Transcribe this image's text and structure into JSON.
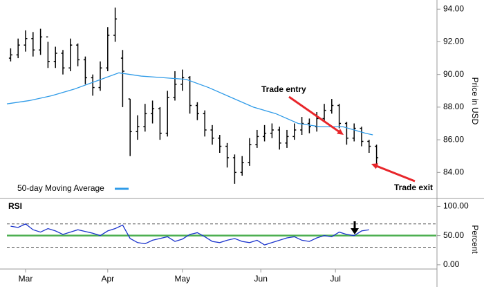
{
  "chart_data": [
    {
      "type": "ohlc",
      "y_label": "Price in USD",
      "xlim": [
        0,
        115
      ],
      "ylim": [
        82.7,
        94.35
      ],
      "yticks": [
        {
          "value": 84,
          "label": "84.00"
        },
        {
          "value": 86,
          "label": "86.00"
        },
        {
          "value": 88,
          "label": "88.00"
        },
        {
          "value": 90,
          "label": "90.00"
        },
        {
          "value": 92,
          "label": "92.00"
        },
        {
          "value": 94,
          "label": "94.00"
        }
      ],
      "ohlc": {
        "color": "#000000",
        "x": [
          1,
          3,
          5,
          7,
          9,
          11,
          13,
          15,
          17,
          19,
          21,
          23,
          25,
          27,
          29,
          31,
          33,
          35,
          37,
          39,
          41,
          43,
          45,
          47,
          49,
          51,
          53,
          55,
          57,
          59,
          61,
          63,
          65,
          67,
          69,
          71,
          73,
          75,
          77,
          79,
          81,
          83,
          85,
          87,
          89,
          91,
          93,
          95,
          97,
          99
        ],
        "open": [
          91.0,
          91.2,
          91.8,
          92.2,
          91.5,
          92.3,
          90.8,
          91.3,
          90.4,
          91.8,
          90.9,
          89.8,
          89.2,
          90.4,
          92.4,
          91.0,
          88.5,
          86.5,
          86.8,
          87.6,
          87.9,
          86.4,
          88.6,
          89.4,
          89.8,
          88.1,
          87.6,
          86.6,
          86.1,
          85.6,
          84.9,
          84.0,
          84.6,
          85.7,
          86.2,
          86.4,
          86.6,
          85.8,
          86.2,
          86.6,
          87.0,
          86.8,
          87.3,
          87.8,
          88.1,
          87.0,
          86.1,
          86.7,
          85.9,
          85.6
        ],
        "high": [
          91.6,
          92.2,
          92.7,
          92.6,
          92.8,
          92.0,
          91.7,
          91.5,
          92.2,
          91.9,
          91.1,
          90.0,
          90.8,
          92.9,
          94.1,
          91.5,
          88.5,
          87.5,
          88.2,
          88.4,
          88.0,
          89.0,
          90.2,
          90.3,
          89.9,
          88.3,
          87.8,
          86.9,
          86.3,
          85.8,
          85.1,
          85.0,
          86.1,
          86.6,
          86.9,
          87.0,
          86.8,
          86.6,
          87.0,
          87.4,
          87.3,
          87.7,
          88.2,
          88.5,
          88.2,
          87.1,
          87.0,
          86.8,
          86.0,
          85.7
        ],
        "low": [
          90.8,
          91.0,
          91.4,
          91.1,
          91.2,
          90.4,
          90.4,
          90.0,
          90.2,
          90.5,
          89.4,
          88.7,
          89.0,
          90.2,
          92.0,
          88.0,
          85.0,
          86.0,
          86.5,
          87.0,
          86.0,
          86.2,
          88.4,
          89.0,
          87.6,
          87.2,
          86.2,
          85.7,
          85.2,
          84.3,
          83.3,
          83.8,
          84.4,
          85.5,
          85.9,
          86.1,
          85.4,
          85.5,
          86.0,
          86.3,
          86.4,
          86.5,
          87.1,
          87.6,
          86.7,
          85.7,
          85.9,
          85.6,
          85.2,
          84.3
        ],
        "close": [
          91.2,
          91.8,
          92.2,
          91.5,
          92.3,
          90.8,
          91.3,
          90.4,
          91.8,
          90.9,
          89.8,
          89.2,
          90.4,
          92.4,
          93.4,
          90.2,
          86.5,
          86.8,
          87.6,
          87.9,
          86.4,
          88.6,
          89.4,
          89.8,
          88.1,
          87.6,
          86.6,
          86.1,
          85.6,
          84.9,
          84.0,
          84.6,
          85.7,
          86.2,
          86.4,
          86.6,
          85.8,
          86.2,
          86.6,
          87.0,
          86.8,
          87.3,
          87.8,
          88.1,
          87.0,
          86.1,
          86.7,
          85.9,
          85.6,
          84.9
        ]
      },
      "moving_average": {
        "name": "50-day Moving Average",
        "color": "#2f9be8",
        "x": [
          0,
          6,
          12,
          18,
          24,
          30,
          36,
          42,
          48,
          54,
          60,
          66,
          72,
          78,
          84,
          90,
          96,
          98
        ],
        "values": [
          88.2,
          88.4,
          88.7,
          89.1,
          89.6,
          90.1,
          89.9,
          89.8,
          89.7,
          89.2,
          88.6,
          88.0,
          87.6,
          87.0,
          86.8,
          86.8,
          86.4,
          86.3
        ]
      },
      "annotations": [
        {
          "text": "Trade entry",
          "color": "#e8262b"
        },
        {
          "text": "Trade exit",
          "color": "#e8262b"
        }
      ]
    },
    {
      "type": "line",
      "title": "RSI",
      "y_label": "Percent",
      "xlim": [
        0,
        115
      ],
      "ylim": [
        -12,
        110
      ],
      "xticks": [
        {
          "value": 5,
          "label": "Mar"
        },
        {
          "value": 27,
          "label": "Apr"
        },
        {
          "value": 47,
          "label": "May"
        },
        {
          "value": 68,
          "label": "Jun"
        },
        {
          "value": 88,
          "label": "Jul"
        }
      ],
      "yticks": [
        {
          "value": 0,
          "label": "0.00"
        },
        {
          "value": 50,
          "label": "50.00"
        },
        {
          "value": 100,
          "label": "100.00"
        }
      ],
      "reference_lines": [
        {
          "value": 70,
          "color": "#555555",
          "dashed": true
        },
        {
          "value": 30,
          "color": "#555555",
          "dashed": true
        },
        {
          "value": 50,
          "color": "#4caf50",
          "dashed": false
        }
      ],
      "series": [
        {
          "color": "#1a33cc",
          "x": [
            1,
            3,
            5,
            7,
            9,
            11,
            13,
            15,
            17,
            19,
            21,
            23,
            25,
            27,
            29,
            31,
            33,
            35,
            37,
            39,
            41,
            43,
            45,
            47,
            49,
            51,
            53,
            55,
            57,
            59,
            61,
            63,
            65,
            67,
            69,
            71,
            73,
            75,
            77,
            79,
            81,
            83,
            85,
            87,
            89,
            91,
            93,
            95,
            97
          ],
          "values": [
            66,
            64,
            70,
            60,
            56,
            62,
            58,
            52,
            56,
            60,
            57,
            54,
            50,
            58,
            62,
            68,
            45,
            38,
            36,
            42,
            45,
            48,
            40,
            44,
            52,
            55,
            48,
            40,
            38,
            42,
            45,
            40,
            38,
            42,
            34,
            38,
            42,
            46,
            48,
            42,
            40,
            46,
            50,
            48,
            56,
            52,
            50,
            58,
            60
          ]
        }
      ]
    }
  ]
}
